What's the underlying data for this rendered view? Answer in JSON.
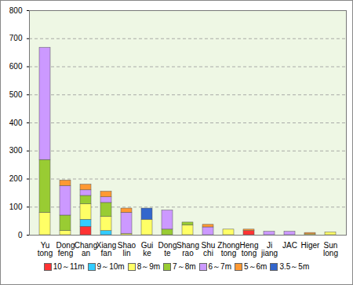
{
  "chart_data": {
    "type": "bar",
    "stacked": true,
    "grid": true,
    "categories": [
      "Yu\ntong",
      "Dong\nfeng",
      "Chang\nan",
      "Xiang\nfan",
      "Shao\nlin",
      "Gui\nke",
      "Dong\nte",
      "Shang\nrao",
      "Shu\nchi",
      "Zhong\ntong",
      "Heng\ntong",
      "Ji\njiang",
      "JAC",
      "Higer",
      "Sun\nlong"
    ],
    "series": [
      {
        "name": "10～11m",
        "color": "#ff3333",
        "values": [
          0,
          0,
          30,
          0,
          0,
          0,
          0,
          0,
          0,
          0,
          15,
          0,
          0,
          0,
          0
        ]
      },
      {
        "name": "9～10m",
        "color": "#33ccff",
        "values": [
          0,
          0,
          25,
          15,
          0,
          0,
          0,
          0,
          0,
          0,
          0,
          0,
          0,
          0,
          0
        ]
      },
      {
        "name": "8～9m",
        "color": "#ffff66",
        "values": [
          80,
          15,
          55,
          50,
          5,
          55,
          0,
          35,
          0,
          20,
          0,
          0,
          0,
          3,
          10
        ]
      },
      {
        "name": "7～8m",
        "color": "#99cc33",
        "values": [
          188,
          55,
          30,
          50,
          0,
          0,
          20,
          10,
          0,
          0,
          0,
          0,
          0,
          0,
          0
        ]
      },
      {
        "name": "6～7m",
        "color": "#cc99ff",
        "values": [
          400,
          105,
          20,
          20,
          75,
          0,
          68,
          0,
          28,
          0,
          0,
          12,
          12,
          0,
          0
        ]
      },
      {
        "name": "5～6m",
        "color": "#ff9933",
        "values": [
          0,
          20,
          20,
          20,
          15,
          0,
          0,
          0,
          9,
          0,
          5,
          0,
          0,
          5,
          0
        ]
      },
      {
        "name": "3.5～5m",
        "color": "#3366cc",
        "values": [
          0,
          0,
          0,
          0,
          0,
          40,
          0,
          0,
          0,
          0,
          0,
          0,
          0,
          0,
          0
        ]
      }
    ],
    "ylim": [
      0,
      800
    ],
    "yticks": [
      0,
      100,
      200,
      300,
      400,
      500,
      600,
      700,
      800
    ],
    "legend": "bottom"
  }
}
